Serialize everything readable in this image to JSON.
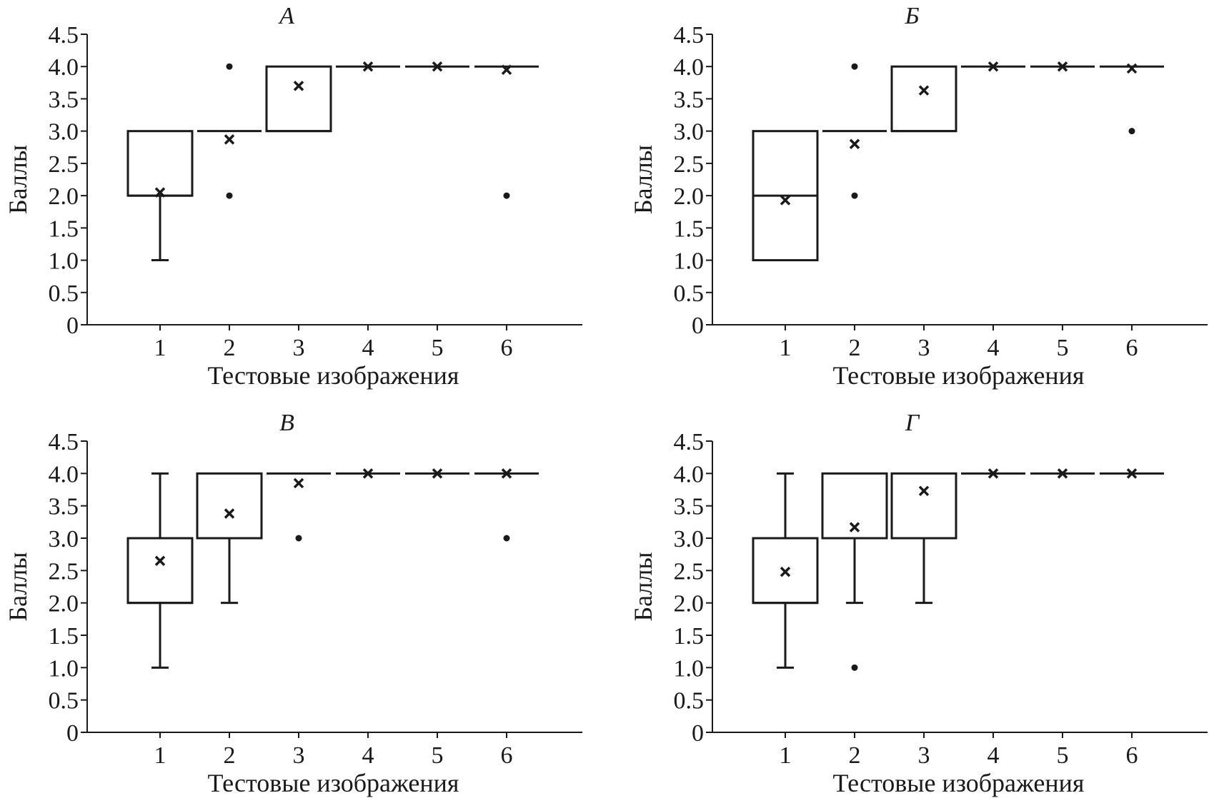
{
  "chart_data": [
    {
      "type": "box",
      "title": "А",
      "xlabel": "Тестовые изображения",
      "ylabel": "Баллы",
      "categories": [
        "1",
        "2",
        "3",
        "4",
        "5",
        "6"
      ],
      "yticks": [
        "0",
        "0.5",
        "1.0",
        "1.5",
        "2.0",
        "2.5",
        "3.0",
        "3.5",
        "4.0",
        "4.5"
      ],
      "ylim": [
        0,
        4.5
      ],
      "boxes": [
        {
          "category": "1",
          "q1": 2.0,
          "median": 2.0,
          "q3": 3.0,
          "whisker_low": 1.0,
          "whisker_high": 3.0,
          "mean": 2.05,
          "outliers": []
        },
        {
          "category": "2",
          "q1": 3.0,
          "median": 3.0,
          "q3": 3.0,
          "whisker_low": 3.0,
          "whisker_high": 3.0,
          "mean": 2.87,
          "outliers": [
            4.0,
            2.0
          ]
        },
        {
          "category": "3",
          "q1": 3.0,
          "median": 3.0,
          "q3": 4.0,
          "whisker_low": 3.0,
          "whisker_high": 4.0,
          "mean": 3.7,
          "outliers": []
        },
        {
          "category": "4",
          "q1": 4.0,
          "median": 4.0,
          "q3": 4.0,
          "whisker_low": 4.0,
          "whisker_high": 4.0,
          "mean": 4.0,
          "outliers": []
        },
        {
          "category": "5",
          "q1": 4.0,
          "median": 4.0,
          "q3": 4.0,
          "whisker_low": 4.0,
          "whisker_high": 4.0,
          "mean": 4.0,
          "outliers": []
        },
        {
          "category": "6",
          "q1": 4.0,
          "median": 4.0,
          "q3": 4.0,
          "whisker_low": 4.0,
          "whisker_high": 4.0,
          "mean": 3.95,
          "outliers": [
            2.0
          ]
        }
      ]
    },
    {
      "type": "box",
      "title": "Б",
      "xlabel": "Тестовые изображения",
      "ylabel": "Баллы",
      "categories": [
        "1",
        "2",
        "3",
        "4",
        "5",
        "6"
      ],
      "yticks": [
        "0",
        "0.5",
        "1.0",
        "1.5",
        "2.0",
        "2.5",
        "3.0",
        "3.5",
        "4.0",
        "4.5"
      ],
      "ylim": [
        0,
        4.5
      ],
      "boxes": [
        {
          "category": "1",
          "q1": 1.0,
          "median": 2.0,
          "q3": 3.0,
          "whisker_low": 1.0,
          "whisker_high": 3.0,
          "mean": 1.93,
          "outliers": []
        },
        {
          "category": "2",
          "q1": 3.0,
          "median": 3.0,
          "q3": 3.0,
          "whisker_low": 3.0,
          "whisker_high": 3.0,
          "mean": 2.8,
          "outliers": [
            4.0,
            2.0
          ]
        },
        {
          "category": "3",
          "q1": 3.0,
          "median": 3.0,
          "q3": 4.0,
          "whisker_low": 3.0,
          "whisker_high": 4.0,
          "mean": 3.63,
          "outliers": []
        },
        {
          "category": "4",
          "q1": 4.0,
          "median": 4.0,
          "q3": 4.0,
          "whisker_low": 4.0,
          "whisker_high": 4.0,
          "mean": 4.0,
          "outliers": []
        },
        {
          "category": "5",
          "q1": 4.0,
          "median": 4.0,
          "q3": 4.0,
          "whisker_low": 4.0,
          "whisker_high": 4.0,
          "mean": 4.0,
          "outliers": []
        },
        {
          "category": "6",
          "q1": 4.0,
          "median": 4.0,
          "q3": 4.0,
          "whisker_low": 4.0,
          "whisker_high": 4.0,
          "mean": 3.97,
          "outliers": [
            3.0
          ]
        }
      ]
    },
    {
      "type": "box",
      "title": "В",
      "xlabel": "Тестовые изображения",
      "ylabel": "Баллы",
      "categories": [
        "1",
        "2",
        "3",
        "4",
        "5",
        "6"
      ],
      "yticks": [
        "0",
        "0.5",
        "1.0",
        "1.5",
        "2.0",
        "2.5",
        "3.0",
        "3.5",
        "4.0",
        "4.5"
      ],
      "ylim": [
        0,
        4.5
      ],
      "boxes": [
        {
          "category": "1",
          "q1": 2.0,
          "median": 2.0,
          "q3": 3.0,
          "whisker_low": 1.0,
          "whisker_high": 4.0,
          "mean": 2.65,
          "outliers": []
        },
        {
          "category": "2",
          "q1": 3.0,
          "median": 3.0,
          "q3": 4.0,
          "whisker_low": 2.0,
          "whisker_high": 4.0,
          "mean": 3.38,
          "outliers": []
        },
        {
          "category": "3",
          "q1": 4.0,
          "median": 4.0,
          "q3": 4.0,
          "whisker_low": 4.0,
          "whisker_high": 4.0,
          "mean": 3.85,
          "outliers": [
            3.0
          ]
        },
        {
          "category": "4",
          "q1": 4.0,
          "median": 4.0,
          "q3": 4.0,
          "whisker_low": 4.0,
          "whisker_high": 4.0,
          "mean": 4.0,
          "outliers": []
        },
        {
          "category": "5",
          "q1": 4.0,
          "median": 4.0,
          "q3": 4.0,
          "whisker_low": 4.0,
          "whisker_high": 4.0,
          "mean": 4.0,
          "outliers": []
        },
        {
          "category": "6",
          "q1": 4.0,
          "median": 4.0,
          "q3": 4.0,
          "whisker_low": 4.0,
          "whisker_high": 4.0,
          "mean": 4.0,
          "outliers": [
            3.0
          ]
        }
      ]
    },
    {
      "type": "box",
      "title": "Г",
      "xlabel": "Тестовые изображения",
      "ylabel": "Баллы",
      "categories": [
        "1",
        "2",
        "3",
        "4",
        "5",
        "6"
      ],
      "yticks": [
        "0",
        "0.5",
        "1.0",
        "1.5",
        "2.0",
        "2.5",
        "3.0",
        "3.5",
        "4.0",
        "4.5"
      ],
      "ylim": [
        0,
        4.5
      ],
      "boxes": [
        {
          "category": "1",
          "q1": 2.0,
          "median": 2.0,
          "q3": 3.0,
          "whisker_low": 1.0,
          "whisker_high": 4.0,
          "mean": 2.48,
          "outliers": []
        },
        {
          "category": "2",
          "q1": 3.0,
          "median": 3.0,
          "q3": 4.0,
          "whisker_low": 2.0,
          "whisker_high": 4.0,
          "mean": 3.17,
          "outliers": [
            1.0
          ]
        },
        {
          "category": "3",
          "q1": 3.0,
          "median": 3.0,
          "q3": 4.0,
          "whisker_low": 2.0,
          "whisker_high": 4.0,
          "mean": 3.73,
          "outliers": []
        },
        {
          "category": "4",
          "q1": 4.0,
          "median": 4.0,
          "q3": 4.0,
          "whisker_low": 4.0,
          "whisker_high": 4.0,
          "mean": 4.0,
          "outliers": []
        },
        {
          "category": "5",
          "q1": 4.0,
          "median": 4.0,
          "q3": 4.0,
          "whisker_low": 4.0,
          "whisker_high": 4.0,
          "mean": 4.0,
          "outliers": []
        },
        {
          "category": "6",
          "q1": 4.0,
          "median": 4.0,
          "q3": 4.0,
          "whisker_low": 4.0,
          "whisker_high": 4.0,
          "mean": 4.0,
          "outliers": []
        }
      ]
    }
  ]
}
